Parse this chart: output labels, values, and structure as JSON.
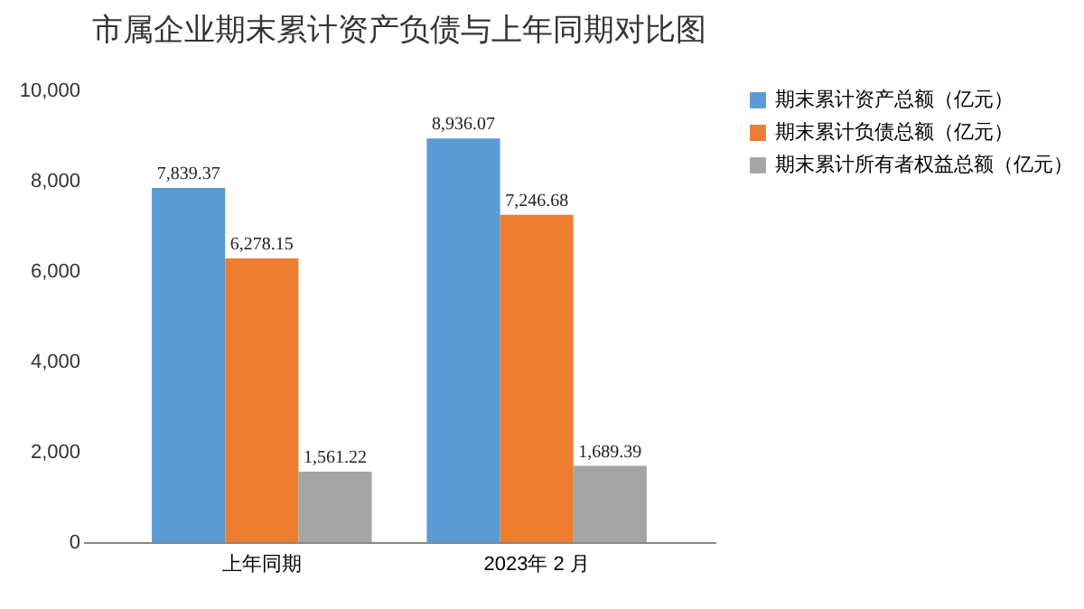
{
  "chart_data": {
    "type": "bar",
    "title": "市属企业期末累计资产负债与上年同期对比图",
    "categories": [
      "上年同期",
      "2023年 2 月"
    ],
    "series": [
      {
        "name": "期末累计资产总额（亿元）",
        "color": "#5b9bd5",
        "values": [
          7839.37,
          8936.07
        ],
        "value_labels": [
          "7,839.37",
          "8,936.07"
        ]
      },
      {
        "name": "期末累计负债总额（亿元）",
        "color": "#ed7d31",
        "values": [
          6278.15,
          7246.68
        ],
        "value_labels": [
          "6,278.15",
          "7,246.68"
        ]
      },
      {
        "name": "期末累计所有者权益总额（亿元）",
        "color": "#a5a5a5",
        "values": [
          1561.22,
          1689.39
        ],
        "value_labels": [
          "1,561.22",
          "1,689.39"
        ]
      }
    ],
    "ylim": [
      0,
      10000
    ],
    "yticks": [
      {
        "value": 0,
        "label": "0"
      },
      {
        "value": 2000,
        "label": "2,000"
      },
      {
        "value": 4000,
        "label": "4,000"
      },
      {
        "value": 6000,
        "label": "6,000"
      },
      {
        "value": 8000,
        "label": "8,000"
      },
      {
        "value": 10000,
        "label": "10,000"
      }
    ],
    "legend": "right"
  }
}
